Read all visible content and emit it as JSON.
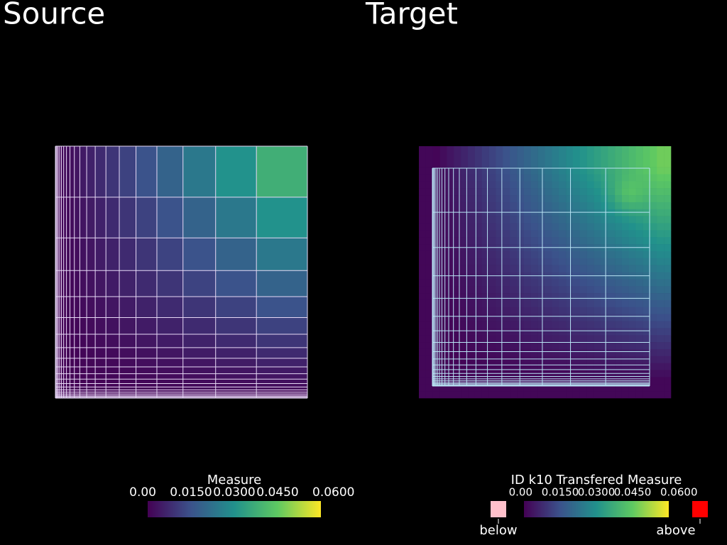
{
  "panels": [
    {
      "title": "Source",
      "colorbar": {
        "title": "Measure",
        "range": [
          0,
          0.06
        ],
        "ticks": [
          {
            "value": 0,
            "label": "0.00"
          },
          {
            "value": 0.015,
            "label": "0.0150"
          },
          {
            "value": 0.03,
            "label": "0.0300"
          },
          {
            "value": 0.045,
            "label": "0.0450"
          },
          {
            "value": 0.06,
            "label": "0.0600"
          }
        ],
        "colors": [
          "#440154",
          "#3b528b",
          "#21918c",
          "#5ec962",
          "#fde725"
        ]
      }
    },
    {
      "title": "Target",
      "colorbar": {
        "title": "ID k10 Transfered Measure",
        "range": [
          0,
          0.06
        ],
        "ticks": [
          {
            "value": 0,
            "label": "0.00"
          },
          {
            "value": 0.015,
            "label": "0.0150"
          },
          {
            "value": 0.03,
            "label": "0.0300"
          },
          {
            "value": 0.045,
            "label": "0.0450"
          },
          {
            "value": 0.06,
            "label": "0.0600"
          }
        ],
        "colors": [
          "#440154",
          "#3b528b",
          "#21918c",
          "#5ec962",
          "#fde725"
        ],
        "below_label": "below",
        "below_color": "#ffc0cb",
        "above_label": "above",
        "above_color": "#ff0000"
      }
    }
  ]
}
